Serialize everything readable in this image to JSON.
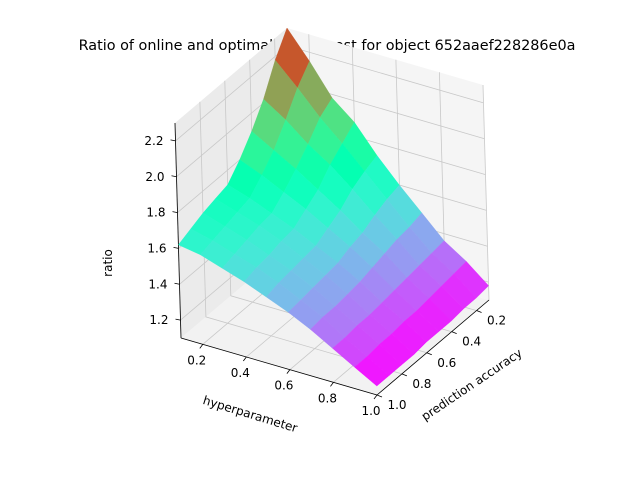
{
  "chart_data": {
    "type": "surface3d",
    "title": "Ratio of online and optimal offline cost for object 652aaef228286e0a",
    "xlabel": "hyperparameter",
    "ylabel": "prediction accuracy",
    "zlabel": "ratio",
    "x_ticks": [
      "0.2",
      "0.4",
      "0.6",
      "0.8",
      "1.0"
    ],
    "y_ticks": [
      "0.2",
      "0.4",
      "0.6",
      "0.8",
      "1.0"
    ],
    "z_ticks": [
      "1.2",
      "1.4",
      "1.6",
      "1.8",
      "2.0",
      "2.2"
    ],
    "xlim": [
      0.1,
      1.0
    ],
    "ylim": [
      0.1,
      1.0
    ],
    "zlim": [
      1.1,
      2.3
    ],
    "colormap": "rainbow",
    "grid": true,
    "x": [
      0.1,
      0.2,
      0.3,
      0.4,
      0.5,
      0.6,
      0.7,
      0.8,
      0.9,
      1.0
    ],
    "y": [
      0.1,
      0.2,
      0.3,
      0.4,
      0.5,
      0.6,
      0.7,
      0.8,
      0.9,
      1.0
    ],
    "z": [
      [
        2.3,
        2.15,
        1.98,
        1.88,
        1.73,
        1.6,
        1.48,
        1.36,
        1.28,
        1.18
      ],
      [
        2.18,
        2.06,
        1.93,
        1.82,
        1.7,
        1.58,
        1.46,
        1.35,
        1.27,
        1.17
      ],
      [
        2.02,
        1.94,
        1.84,
        1.76,
        1.66,
        1.55,
        1.45,
        1.34,
        1.26,
        1.17
      ],
      [
        1.9,
        1.83,
        1.76,
        1.68,
        1.6,
        1.51,
        1.43,
        1.33,
        1.25,
        1.16
      ],
      [
        1.8,
        1.75,
        1.69,
        1.63,
        1.56,
        1.49,
        1.41,
        1.32,
        1.24,
        1.16
      ],
      [
        1.72,
        1.68,
        1.63,
        1.58,
        1.52,
        1.46,
        1.39,
        1.31,
        1.24,
        1.16
      ],
      [
        1.7,
        1.66,
        1.62,
        1.57,
        1.51,
        1.45,
        1.38,
        1.3,
        1.23,
        1.15
      ],
      [
        1.68,
        1.64,
        1.6,
        1.55,
        1.5,
        1.44,
        1.37,
        1.3,
        1.23,
        1.15
      ],
      [
        1.65,
        1.62,
        1.58,
        1.54,
        1.49,
        1.43,
        1.37,
        1.29,
        1.22,
        1.15
      ],
      [
        1.62,
        1.6,
        1.56,
        1.52,
        1.47,
        1.42,
        1.36,
        1.29,
        1.22,
        1.15
      ]
    ]
  }
}
